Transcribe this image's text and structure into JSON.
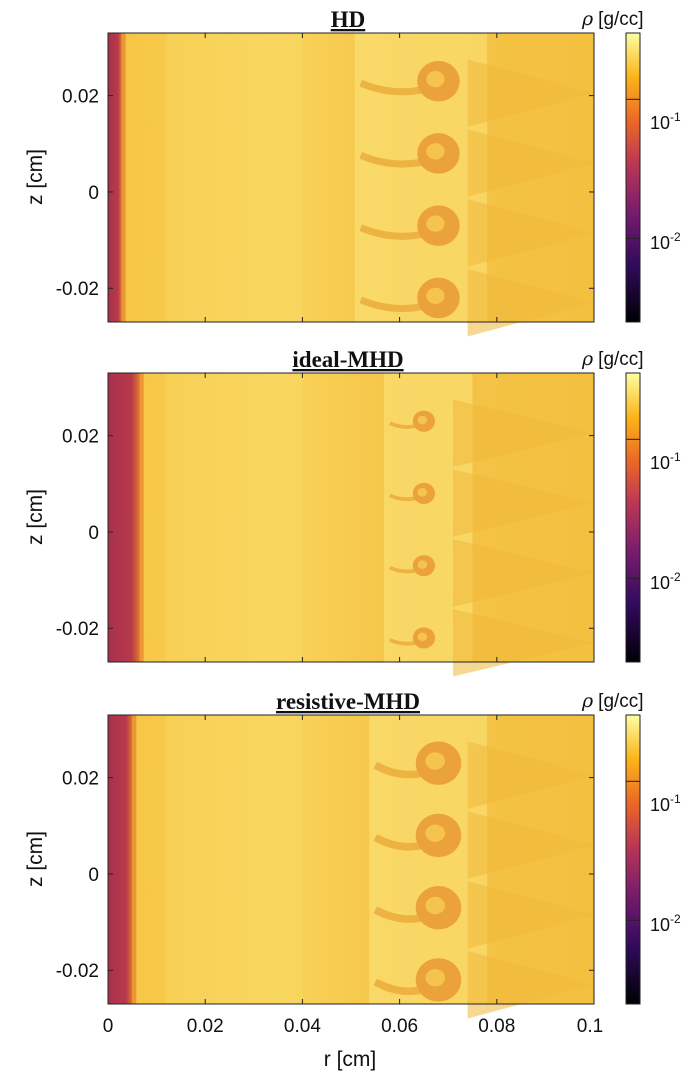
{
  "chart_data": [
    {
      "type": "heatmap",
      "title": "HD",
      "xlabel": "",
      "ylabel": "z [cm]",
      "xlim": [
        0,
        0.1
      ],
      "ylim": [
        -0.027,
        0.033
      ],
      "xticks": [
        "",
        "",
        "",
        "",
        "",
        ""
      ],
      "yticks": [
        {
          "value": 0.02,
          "label": "0.02"
        },
        {
          "value": 0,
          "label": "0"
        },
        {
          "value": -0.02,
          "label": "-0.02"
        }
      ],
      "colorbar": {
        "label_symbol": "ρ",
        "label_units": "[g/cc]",
        "scale": "log",
        "range": [
          0.0025,
          0.3
        ],
        "ticks": [
          {
            "value": 0.1,
            "base": "10",
            "exp": "-1"
          },
          {
            "value": 0.01,
            "base": "10",
            "exp": "-2"
          }
        ]
      },
      "features": {
        "wall_r": 0.0028,
        "front_r": 0.052,
        "vortex_r": 0.068,
        "vortex_z": [
          0.023,
          0.008,
          -0.007,
          -0.022
        ],
        "vortex_size": 0.0042
      }
    },
    {
      "type": "heatmap",
      "title": "ideal-MHD",
      "xlabel": "",
      "ylabel": "z [cm]",
      "xlim": [
        0,
        0.1
      ],
      "ylim": [
        -0.027,
        0.033
      ],
      "xticks": [
        "",
        "",
        "",
        "",
        "",
        ""
      ],
      "yticks": [
        {
          "value": 0.02,
          "label": "0.02"
        },
        {
          "value": 0,
          "label": "0"
        },
        {
          "value": -0.02,
          "label": "-0.02"
        }
      ],
      "colorbar": {
        "label_symbol": "ρ",
        "label_units": "[g/cc]",
        "scale": "log",
        "range": [
          0.0025,
          0.3
        ],
        "ticks": [
          {
            "value": 0.1,
            "base": "10",
            "exp": "-1"
          },
          {
            "value": 0.01,
            "base": "10",
            "exp": "-2"
          }
        ]
      },
      "features": {
        "wall_r": 0.0065,
        "front_r": 0.058,
        "vortex_r": 0.065,
        "vortex_z": [
          0.023,
          0.008,
          -0.007,
          -0.022
        ],
        "vortex_size": 0.0022
      }
    },
    {
      "type": "heatmap",
      "title": "resistive-MHD",
      "xlabel": "r [cm]",
      "ylabel": "z [cm]",
      "xlim": [
        0,
        0.1
      ],
      "ylim": [
        -0.027,
        0.033
      ],
      "xticks": [
        "0",
        "0.02",
        "0.04",
        "0.06",
        "0.08",
        "0.1"
      ],
      "yticks": [
        {
          "value": 0.02,
          "label": "0.02"
        },
        {
          "value": 0,
          "label": "0"
        },
        {
          "value": -0.02,
          "label": "-0.02"
        }
      ],
      "colorbar": {
        "label_symbol": "ρ",
        "label_units": "[g/cc]",
        "scale": "log",
        "range": [
          0.0025,
          0.3
        ],
        "ticks": [
          {
            "value": 0.1,
            "base": "10",
            "exp": "-1"
          },
          {
            "value": 0.01,
            "base": "10",
            "exp": "-2"
          }
        ]
      },
      "features": {
        "wall_r": 0.005,
        "front_r": 0.055,
        "vortex_r": 0.068,
        "vortex_z": [
          0.023,
          0.008,
          -0.007,
          -0.022
        ],
        "vortex_size": 0.0045
      }
    }
  ]
}
